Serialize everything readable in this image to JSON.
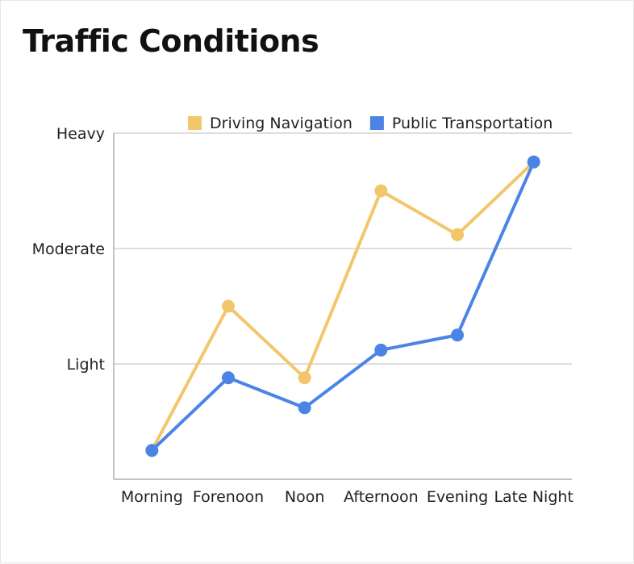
{
  "header": {
    "title": "Traffic Conditions"
  },
  "chart_data": {
    "type": "line",
    "title": "Traffic Conditions",
    "categories": [
      "Morning",
      "Forenoon",
      "Noon",
      "Afternoon",
      "Evening",
      "Late Night"
    ],
    "y_levels": [
      "Light",
      "Moderate",
      "Heavy"
    ],
    "ylim": [
      0,
      3
    ],
    "grid": true,
    "legend_position": "top-right",
    "series": [
      {
        "name": "Driving Navigation",
        "color": "#f2c76b",
        "values": [
          0.25,
          1.5,
          0.88,
          2.5,
          2.12,
          2.75
        ]
      },
      {
        "name": "Public Transportation",
        "color": "#4c84e6",
        "values": [
          0.25,
          0.88,
          0.62,
          1.12,
          1.25,
          2.75
        ]
      }
    ]
  }
}
